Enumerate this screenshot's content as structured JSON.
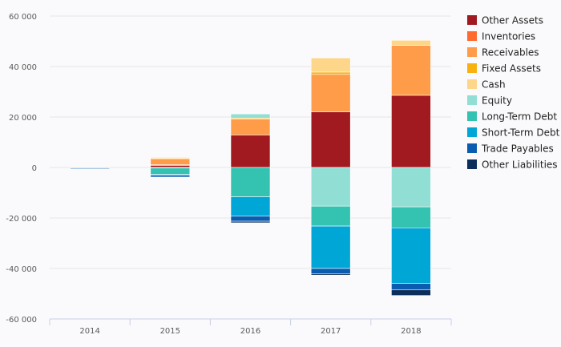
{
  "chart_data": {
    "type": "bar",
    "stacked": true,
    "categories": [
      "2014",
      "2015",
      "2016",
      "2017",
      "2018"
    ],
    "ylim": [
      -60000,
      60000
    ],
    "yticks": [
      60000,
      40000,
      20000,
      0,
      -20000,
      -40000,
      -60000
    ],
    "ytick_labels": [
      "60 000",
      "40 000",
      "20 000",
      "0",
      "-20 000",
      "-40 000",
      "-60 000"
    ],
    "grid": true,
    "legend_position": "right",
    "series": [
      {
        "name": "Other Assets",
        "color": "#a11a20",
        "values": [
          0,
          900,
          12900,
          22000,
          28600
        ]
      },
      {
        "name": "Inventories",
        "color": "#ff6a2f",
        "values": [
          0,
          200,
          0,
          0,
          0
        ]
      },
      {
        "name": "Receivables",
        "color": "#ff9c4a",
        "values": [
          0,
          2400,
          6300,
          14900,
          19800
        ]
      },
      {
        "name": "Fixed Assets",
        "color": "#f7b20f",
        "values": [
          100,
          300,
          400,
          900,
          0
        ]
      },
      {
        "name": "Cash",
        "color": "#fdd68a",
        "values": [
          100,
          200,
          0,
          5600,
          2000
        ]
      },
      {
        "name": "Equity",
        "color": "#90ded4",
        "values": [
          0,
          -200,
          1600,
          -15300,
          -15600
        ]
      },
      {
        "name": "Long-Term Debt",
        "color": "#33c3b0",
        "values": [
          0,
          -2500,
          -11600,
          -7900,
          -8300
        ]
      },
      {
        "name": "Short-Term Debt",
        "color": "#00a6d6",
        "values": [
          -200,
          -400,
          -7700,
          -16800,
          -22000
        ]
      },
      {
        "name": "Trade Payables",
        "color": "#0a5cb0",
        "values": [
          -100,
          -700,
          -2000,
          -2000,
          -2600
        ]
      },
      {
        "name": "Other Liabilities",
        "color": "#0b2e5c",
        "values": [
          0,
          0,
          -600,
          -600,
          -2200
        ]
      }
    ]
  }
}
